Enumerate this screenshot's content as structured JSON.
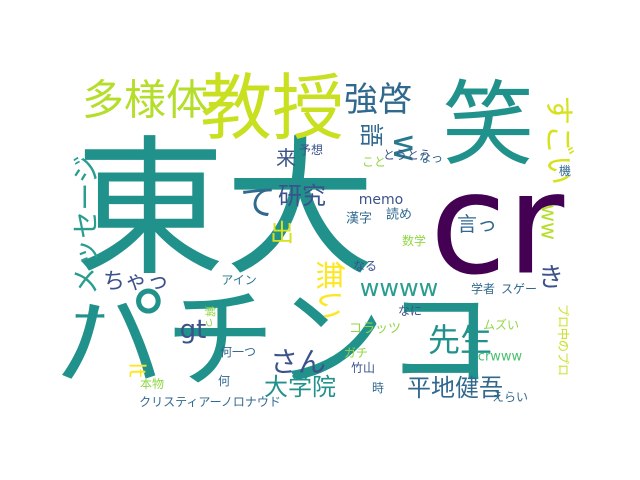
{
  "wordcloud": {
    "palette": {
      "purple": "#440154",
      "indigo": "#3b528b",
      "blue": "#31688e",
      "teal": "#21918c",
      "green": "#35b779",
      "lime": "#90d743",
      "yellow": "#fde725"
    },
    "words": [
      {
        "text": "東大",
        "color": "#21918c"
      },
      {
        "text": "cr",
        "color": "#440154"
      },
      {
        "text": "パチンコ",
        "color": "#21918c"
      },
      {
        "text": "笑",
        "color": "#21918c"
      },
      {
        "text": "教授",
        "color": "#c8e020"
      },
      {
        "text": "多様体",
        "color": "#b5de2b"
      },
      {
        "text": "強啓",
        "color": "#31688e"
      },
      {
        "text": "メッセージ",
        "color": "#2a9d8f"
      },
      {
        "text": "すごい",
        "color": "#d6e21d"
      },
      {
        "text": "語",
        "color": "#31688e"
      },
      {
        "text": "w",
        "color": "#2a788e"
      },
      {
        "text": "ww",
        "color": "#b5de2b"
      },
      {
        "text": "研究",
        "color": "#3b528b"
      },
      {
        "text": "て",
        "color": "#31688e"
      },
      {
        "text": "来",
        "color": "#3b528b"
      },
      {
        "text": "予想",
        "color": "#3b528b"
      },
      {
        "text": "とうとう",
        "color": "#3b528b"
      },
      {
        "text": "こと",
        "color": "#90d743"
      },
      {
        "text": "なっ",
        "color": "#31688e"
      },
      {
        "text": "機",
        "color": "#31688e"
      },
      {
        "text": "memo",
        "color": "#3b528b"
      },
      {
        "text": "読め",
        "color": "#31688e"
      },
      {
        "text": "漢字",
        "color": "#31688e"
      },
      {
        "text": "出",
        "color": "#d6e21d"
      },
      {
        "text": "言っ",
        "color": "#31688e"
      },
      {
        "text": "数学",
        "color": "#90d743"
      },
      {
        "text": "き",
        "color": "#3b528b"
      },
      {
        "text": "ちゃっ",
        "color": "#3b528b"
      },
      {
        "text": "wwww",
        "color": "#2a9d8f"
      },
      {
        "text": "無い",
        "color": "#fde725"
      },
      {
        "text": "なる",
        "color": "#3b528b"
      },
      {
        "text": "アイン",
        "color": "#2a788e"
      },
      {
        "text": "学者",
        "color": "#31688e"
      },
      {
        "text": "スゲー",
        "color": "#31688e"
      },
      {
        "text": "なに",
        "color": "#3b528b"
      },
      {
        "text": "コラッツ",
        "color": "#90d743"
      },
      {
        "text": "ムズい",
        "color": "#90d743"
      },
      {
        "text": "ー",
        "color": "#21918c"
      },
      {
        "text": "gt",
        "color": "#3b528b"
      },
      {
        "text": "先生",
        "color": "#21918c"
      },
      {
        "text": "プロ中のプロ",
        "color": "#c8e020"
      },
      {
        "text": "解っ",
        "color": "#90d743"
      },
      {
        "text": "さん",
        "color": "#3b528b"
      },
      {
        "text": "ガチ",
        "color": "#90d743"
      },
      {
        "text": "竹山",
        "color": "#3b528b"
      },
      {
        "text": "crwww",
        "color": "#4ac16d"
      },
      {
        "text": "lt",
        "color": "#fde725"
      },
      {
        "text": "何一つ",
        "color": "#31688e"
      },
      {
        "text": "本物",
        "color": "#90d743"
      },
      {
        "text": "大学院",
        "color": "#21918c"
      },
      {
        "text": "平地健吾",
        "color": "#31688e"
      },
      {
        "text": "何",
        "color": "#31688e"
      },
      {
        "text": "時",
        "color": "#31688e"
      },
      {
        "text": "クリスティアーノロナウド",
        "color": "#31688e"
      },
      {
        "text": "えらい",
        "color": "#31688e"
      }
    ]
  }
}
